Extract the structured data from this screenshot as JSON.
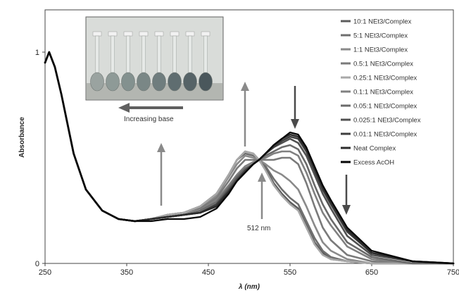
{
  "chart_data": {
    "type": "line",
    "title": "",
    "xlabel": "λ (nm)",
    "ylabel": "Absorbance",
    "xlim": [
      250,
      750
    ],
    "ylim": [
      0,
      1.2
    ],
    "x_ticks": [
      250,
      350,
      450,
      550,
      650,
      750
    ],
    "y_ticks": [
      0,
      1
    ],
    "grid": false,
    "legend_position": "top-right",
    "annotations": {
      "isosbestic_label": "512 nm",
      "inset_caption": "Increasing base"
    },
    "inset": {
      "description_icon": "photo-of-volumetric-flasks",
      "flask_count": 8
    },
    "series": [
      {
        "name": "10:1 NEt3/Complex",
        "color": "#5c5c5c",
        "x": [
          250,
          255,
          262,
          270,
          285,
          300,
          320,
          340,
          360,
          380,
          400,
          420,
          440,
          460,
          475,
          485,
          495,
          505,
          512,
          520,
          530,
          540,
          550,
          560,
          570,
          580,
          590,
          600,
          620,
          650,
          700,
          750
        ],
        "y": [
          0.95,
          1.0,
          0.93,
          0.8,
          0.52,
          0.35,
          0.25,
          0.21,
          0.2,
          0.21,
          0.23,
          0.24,
          0.27,
          0.33,
          0.42,
          0.49,
          0.53,
          0.52,
          0.49,
          0.45,
          0.38,
          0.33,
          0.29,
          0.26,
          0.18,
          0.1,
          0.05,
          0.02,
          0.01,
          0.0,
          0.0,
          0.0
        ]
      },
      {
        "name": "5:1 NEt3/Complex",
        "color": "#6e6e6e",
        "x": [
          250,
          255,
          262,
          270,
          285,
          300,
          320,
          340,
          360,
          380,
          400,
          420,
          440,
          460,
          475,
          485,
          495,
          505,
          512,
          520,
          530,
          540,
          550,
          560,
          570,
          580,
          590,
          600,
          620,
          650,
          700,
          750
        ],
        "y": [
          0.95,
          1.0,
          0.93,
          0.8,
          0.52,
          0.35,
          0.25,
          0.21,
          0.2,
          0.21,
          0.23,
          0.24,
          0.27,
          0.33,
          0.42,
          0.49,
          0.52,
          0.51,
          0.49,
          0.46,
          0.4,
          0.35,
          0.31,
          0.28,
          0.2,
          0.12,
          0.06,
          0.03,
          0.01,
          0.0,
          0.0,
          0.0
        ]
      },
      {
        "name": "1:1 NEt3/Complex",
        "color": "#8a8a8a",
        "x": [
          250,
          255,
          262,
          270,
          285,
          300,
          320,
          340,
          360,
          380,
          400,
          420,
          440,
          460,
          475,
          485,
          495,
          505,
          512,
          520,
          530,
          540,
          550,
          560,
          570,
          580,
          590,
          600,
          620,
          650,
          700,
          750
        ],
        "y": [
          0.95,
          1.0,
          0.93,
          0.8,
          0.52,
          0.35,
          0.25,
          0.21,
          0.2,
          0.21,
          0.23,
          0.24,
          0.26,
          0.32,
          0.41,
          0.47,
          0.51,
          0.5,
          0.49,
          0.47,
          0.44,
          0.42,
          0.39,
          0.35,
          0.27,
          0.18,
          0.1,
          0.06,
          0.02,
          0.0,
          0.0,
          0.0
        ]
      },
      {
        "name": "0.5:1 NEt3/Complex",
        "color": "#7a7a7a",
        "x": [
          250,
          255,
          262,
          270,
          285,
          300,
          320,
          340,
          360,
          380,
          400,
          420,
          440,
          460,
          475,
          485,
          495,
          505,
          512,
          520,
          530,
          540,
          550,
          560,
          570,
          580,
          590,
          600,
          620,
          650,
          700,
          750
        ],
        "y": [
          0.95,
          1.0,
          0.93,
          0.8,
          0.52,
          0.35,
          0.25,
          0.21,
          0.2,
          0.21,
          0.23,
          0.24,
          0.26,
          0.31,
          0.39,
          0.45,
          0.49,
          0.49,
          0.49,
          0.49,
          0.49,
          0.5,
          0.5,
          0.47,
          0.38,
          0.27,
          0.17,
          0.11,
          0.04,
          0.01,
          0.0,
          0.0
        ]
      },
      {
        "name": "0.25:1 NEt3/Complex",
        "color": "#a8a8a8",
        "x": [
          250,
          255,
          262,
          270,
          285,
          300,
          320,
          340,
          360,
          380,
          400,
          420,
          440,
          460,
          475,
          485,
          495,
          505,
          512,
          520,
          530,
          540,
          550,
          560,
          570,
          580,
          590,
          600,
          620,
          650,
          700,
          750
        ],
        "y": [
          0.95,
          1.0,
          0.93,
          0.8,
          0.52,
          0.35,
          0.25,
          0.21,
          0.2,
          0.21,
          0.23,
          0.24,
          0.27,
          0.33,
          0.42,
          0.49,
          0.53,
          0.52,
          0.49,
          0.44,
          0.37,
          0.32,
          0.28,
          0.25,
          0.17,
          0.09,
          0.04,
          0.02,
          0.01,
          0.0,
          0.0,
          0.0
        ]
      },
      {
        "name": "0.1:1 NEt3/Complex",
        "color": "#808080",
        "x": [
          250,
          255,
          262,
          270,
          285,
          300,
          320,
          340,
          360,
          380,
          400,
          420,
          440,
          460,
          475,
          485,
          495,
          505,
          512,
          520,
          530,
          540,
          550,
          560,
          570,
          580,
          590,
          600,
          620,
          650,
          700,
          750
        ],
        "y": [
          0.95,
          1.0,
          0.93,
          0.8,
          0.52,
          0.35,
          0.25,
          0.21,
          0.2,
          0.21,
          0.22,
          0.23,
          0.25,
          0.3,
          0.37,
          0.42,
          0.46,
          0.48,
          0.49,
          0.5,
          0.52,
          0.53,
          0.53,
          0.51,
          0.43,
          0.33,
          0.24,
          0.18,
          0.08,
          0.02,
          0.0,
          0.0
        ]
      },
      {
        "name": "0.05:1 NEt3/Complex",
        "color": "#6a6a6a",
        "x": [
          250,
          255,
          262,
          270,
          285,
          300,
          320,
          340,
          360,
          380,
          400,
          420,
          440,
          460,
          475,
          485,
          495,
          505,
          512,
          520,
          530,
          540,
          550,
          560,
          570,
          580,
          590,
          600,
          620,
          650,
          700,
          750
        ],
        "y": [
          0.95,
          1.0,
          0.93,
          0.8,
          0.52,
          0.35,
          0.25,
          0.21,
          0.2,
          0.21,
          0.22,
          0.23,
          0.25,
          0.29,
          0.36,
          0.41,
          0.45,
          0.47,
          0.49,
          0.51,
          0.53,
          0.55,
          0.56,
          0.54,
          0.47,
          0.37,
          0.28,
          0.21,
          0.1,
          0.03,
          0.0,
          0.0
        ]
      },
      {
        "name": "0.025:1 NEt3/Complex",
        "color": "#505050",
        "x": [
          250,
          255,
          262,
          270,
          285,
          300,
          320,
          340,
          360,
          380,
          400,
          420,
          440,
          460,
          475,
          485,
          495,
          505,
          512,
          520,
          530,
          540,
          550,
          560,
          570,
          580,
          590,
          600,
          620,
          650,
          700,
          750
        ],
        "y": [
          0.95,
          1.0,
          0.93,
          0.8,
          0.52,
          0.35,
          0.25,
          0.21,
          0.2,
          0.21,
          0.22,
          0.23,
          0.24,
          0.28,
          0.35,
          0.4,
          0.44,
          0.47,
          0.49,
          0.52,
          0.55,
          0.57,
          0.59,
          0.57,
          0.51,
          0.42,
          0.33,
          0.26,
          0.13,
          0.04,
          0.01,
          0.0
        ]
      },
      {
        "name": "0.01:1 NEt3/Complex",
        "color": "#3e3e3e",
        "x": [
          250,
          255,
          262,
          270,
          285,
          300,
          320,
          340,
          360,
          380,
          400,
          420,
          440,
          460,
          475,
          485,
          495,
          505,
          512,
          520,
          530,
          540,
          550,
          560,
          570,
          580,
          590,
          600,
          620,
          650,
          700,
          750
        ],
        "y": [
          0.95,
          1.0,
          0.93,
          0.8,
          0.52,
          0.35,
          0.25,
          0.21,
          0.2,
          0.21,
          0.22,
          0.23,
          0.24,
          0.28,
          0.34,
          0.39,
          0.44,
          0.47,
          0.49,
          0.52,
          0.55,
          0.58,
          0.6,
          0.59,
          0.53,
          0.44,
          0.35,
          0.28,
          0.15,
          0.05,
          0.01,
          0.0
        ]
      },
      {
        "name": "Neat Complex",
        "color": "#2b2b2b",
        "x": [
          250,
          255,
          262,
          270,
          285,
          300,
          320,
          340,
          360,
          380,
          400,
          420,
          440,
          460,
          475,
          485,
          495,
          505,
          512,
          520,
          530,
          540,
          550,
          560,
          570,
          580,
          590,
          600,
          620,
          650,
          700,
          750
        ],
        "y": [
          0.95,
          1.0,
          0.93,
          0.8,
          0.52,
          0.35,
          0.25,
          0.21,
          0.2,
          0.21,
          0.22,
          0.23,
          0.24,
          0.27,
          0.34,
          0.39,
          0.43,
          0.47,
          0.49,
          0.52,
          0.56,
          0.59,
          0.61,
          0.6,
          0.54,
          0.45,
          0.36,
          0.29,
          0.16,
          0.05,
          0.01,
          0.0
        ]
      },
      {
        "name": "Excess AcOH",
        "color": "#050505",
        "x": [
          250,
          255,
          262,
          270,
          285,
          300,
          320,
          340,
          360,
          380,
          400,
          420,
          440,
          460,
          475,
          485,
          495,
          505,
          512,
          520,
          530,
          540,
          550,
          560,
          570,
          580,
          590,
          600,
          620,
          650,
          700,
          750
        ],
        "y": [
          0.95,
          1.0,
          0.93,
          0.8,
          0.52,
          0.35,
          0.25,
          0.21,
          0.2,
          0.2,
          0.21,
          0.21,
          0.22,
          0.26,
          0.33,
          0.39,
          0.43,
          0.47,
          0.49,
          0.52,
          0.56,
          0.59,
          0.62,
          0.61,
          0.55,
          0.46,
          0.37,
          0.3,
          0.17,
          0.06,
          0.01,
          0.0
        ]
      }
    ]
  }
}
